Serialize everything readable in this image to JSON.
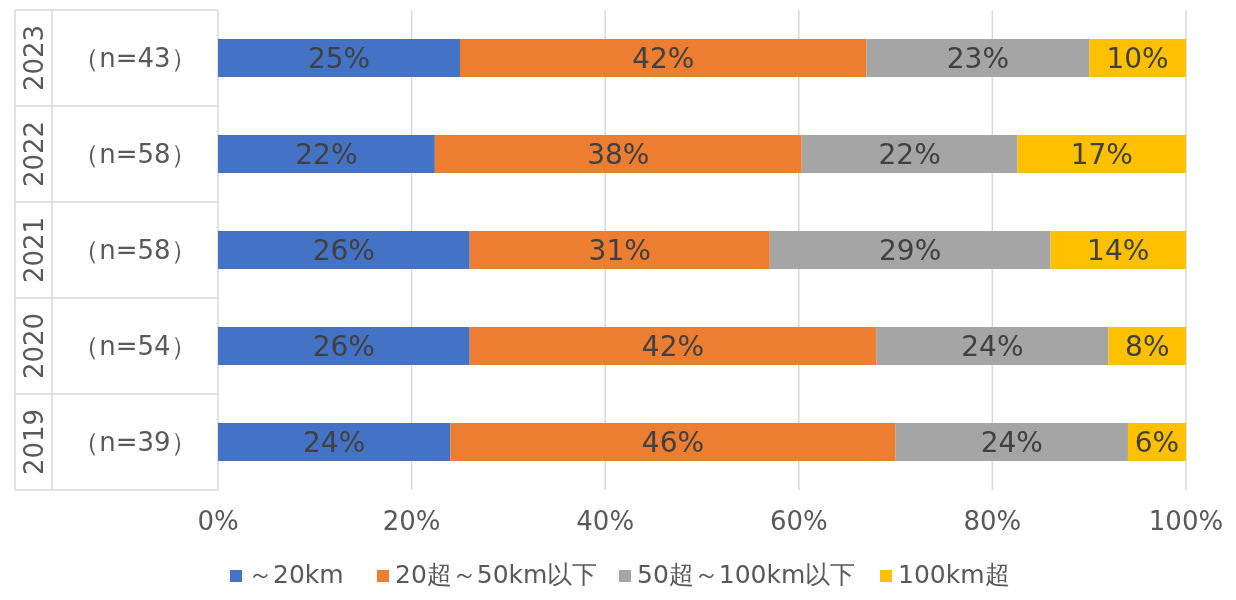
{
  "chart_data": {
    "type": "bar",
    "orientation": "horizontal",
    "stacked": true,
    "categories": [
      "（n=43）",
      "（n=58）",
      "（n=58）",
      "（n=54）",
      "（n=39）"
    ],
    "series": [
      {
        "name": "～20km",
        "color": "#4472c4",
        "values": [
          25,
          22.4,
          26,
          26,
          24
        ],
        "value_labels": [
          "25%",
          "22%",
          "26%",
          "26%",
          "24%"
        ]
      },
      {
        "name": "20超～50km以下",
        "color": "#ed7d31",
        "values": [
          42,
          37.9,
          31,
          42,
          46
        ],
        "value_labels": [
          "42%",
          "38%",
          "31%",
          "42%",
          "46%"
        ]
      },
      {
        "name": "50超～100km以下",
        "color": "#a5a5a5",
        "values": [
          23,
          22.3,
          29,
          24,
          24
        ],
        "value_labels": [
          "23%",
          "22%",
          "29%",
          "24%",
          "24%"
        ]
      },
      {
        "name": "100km超",
        "color": "#ffc000",
        "values": [
          10,
          17.4,
          14,
          8,
          6
        ],
        "value_labels": [
          "10%",
          "17%",
          "14%",
          "8%",
          "6%"
        ]
      }
    ],
    "xlim": [
      0,
      100
    ],
    "xticks": [
      {
        "value": 0,
        "label": "0%"
      },
      {
        "value": 20,
        "label": "20%"
      },
      {
        "value": 40,
        "label": "40%"
      },
      {
        "value": 60,
        "label": "60%"
      },
      {
        "value": 80,
        "label": "80%"
      },
      {
        "value": 100,
        "label": "100%"
      }
    ],
    "grid": "x",
    "legend": "bottom",
    "annotations": [
      "2023",
      "2022",
      "2021",
      "2020",
      "2019"
    ]
  }
}
